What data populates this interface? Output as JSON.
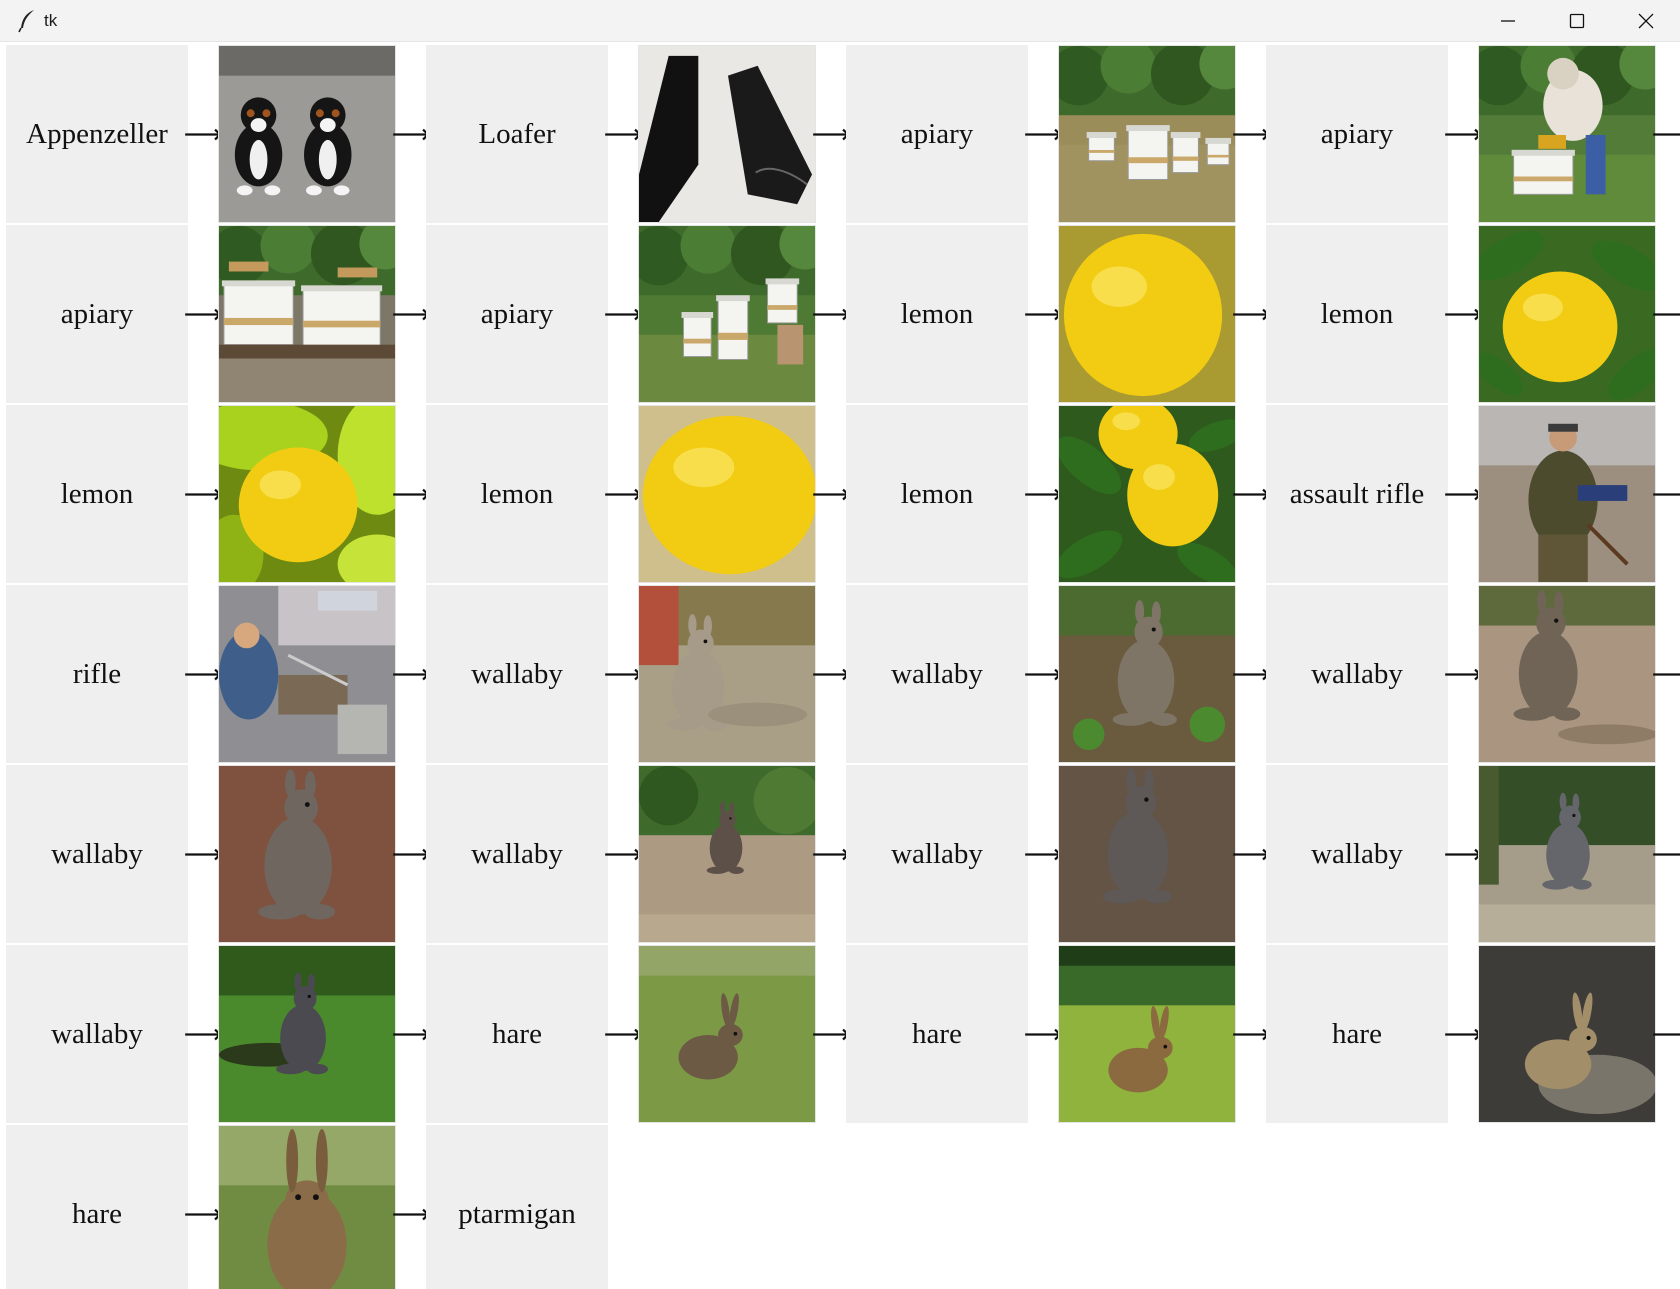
{
  "window": {
    "title": "tk",
    "icon": "feather-icon",
    "controls": [
      "minimize-icon",
      "maximize-icon",
      "close-icon"
    ]
  },
  "chain": {
    "arrow_glyph": "⟶",
    "rows": [
      [
        {
          "label": "Appenzeller",
          "image": "two-dogs"
        },
        {
          "label": "Loafer",
          "image": "loafer-shoes"
        },
        {
          "label": "apiary",
          "image": "apiary-forest"
        },
        {
          "label": "apiary",
          "image": "beekeeper"
        }
      ],
      [
        {
          "label": "apiary",
          "image": "beehives-metal"
        },
        {
          "label": "apiary",
          "image": "apiary-garden"
        },
        {
          "label": "lemon",
          "image": "lemon-closeup"
        },
        {
          "label": "lemon",
          "image": "lemon-on-tree"
        }
      ],
      [
        {
          "label": "lemon",
          "image": "lemon-green-peppers"
        },
        {
          "label": "lemon",
          "image": "lemon-closeup-2"
        },
        {
          "label": "lemon",
          "image": "lemons-leaves"
        },
        {
          "label": "assault rifle",
          "image": "man-camouflage"
        }
      ],
      [
        {
          "label": "rifle",
          "image": "workshop"
        },
        {
          "label": "wallaby",
          "image": "wallaby-resting"
        },
        {
          "label": "wallaby",
          "image": "wallaby-standing"
        },
        {
          "label": "wallaby",
          "image": "wallaby-sitting"
        }
      ],
      [
        {
          "label": "wallaby",
          "image": "wallaby-mulch"
        },
        {
          "label": "wallaby",
          "image": "wallaby-path"
        },
        {
          "label": "wallaby",
          "image": "wallaby-dirt"
        },
        {
          "label": "wallaby",
          "image": "wallaby-bush"
        }
      ],
      [
        {
          "label": "wallaby",
          "image": "rabbit-grass"
        },
        {
          "label": "hare",
          "image": "hare-field"
        },
        {
          "label": "hare",
          "image": "hare-tall-grass"
        },
        {
          "label": "hare",
          "image": "hare-dark-ground"
        }
      ],
      [
        {
          "label": "hare",
          "image": "hare-portrait"
        },
        {
          "label": "ptarmigan"
        }
      ]
    ]
  }
}
